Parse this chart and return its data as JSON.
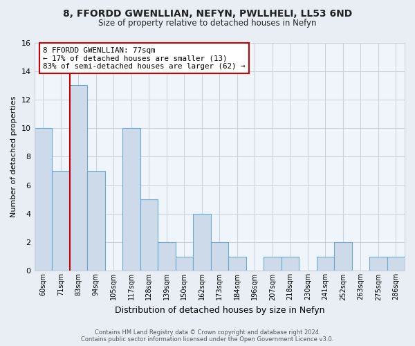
{
  "title_line1": "8, FFORDD GWENLLIAN, NEFYN, PWLLHELI, LL53 6ND",
  "title_line2": "Size of property relative to detached houses in Nefyn",
  "xlabel": "Distribution of detached houses by size in Nefyn",
  "ylabel": "Number of detached properties",
  "bins": [
    "60sqm",
    "71sqm",
    "83sqm",
    "94sqm",
    "105sqm",
    "117sqm",
    "128sqm",
    "139sqm",
    "150sqm",
    "162sqm",
    "173sqm",
    "184sqm",
    "196sqm",
    "207sqm",
    "218sqm",
    "230sqm",
    "241sqm",
    "252sqm",
    "263sqm",
    "275sqm",
    "286sqm"
  ],
  "counts": [
    10,
    7,
    13,
    7,
    0,
    10,
    5,
    2,
    1,
    4,
    2,
    1,
    0,
    1,
    1,
    0,
    1,
    2,
    0,
    1,
    1
  ],
  "bar_fill_color": "#ccdaea",
  "bar_edge_color": "#6aaad4",
  "highlight_color": "#cc0000",
  "annotation_title": "8 FFORDD GWENLLIAN: 77sqm",
  "annotation_line2": "← 17% of detached houses are smaller (13)",
  "annotation_line3": "83% of semi-detached houses are larger (62) →",
  "annotation_box_color": "#ffffff",
  "annotation_box_edge": "#cc0000",
  "ylim": [
    0,
    16
  ],
  "yticks": [
    0,
    2,
    4,
    6,
    8,
    10,
    12,
    14,
    16
  ],
  "footer_line1": "Contains HM Land Registry data © Crown copyright and database right 2024.",
  "footer_line2": "Contains public sector information licensed under the Open Government Licence v3.0.",
  "background_color": "#e8eef4",
  "plot_background": "#f0f5fb",
  "grid_color": "#c8d4e0"
}
